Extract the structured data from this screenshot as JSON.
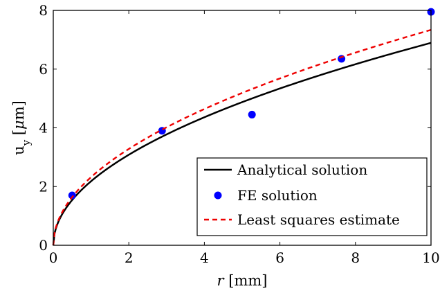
{
  "chart_data": {
    "type": "line",
    "xlabel": {
      "italic": "r",
      "rest": " [mm]"
    },
    "ylabel": {
      "main": "u",
      "sub": "y",
      "bracket_open": " [",
      "mu": "μ",
      "unit": "m]"
    },
    "xlim": [
      0,
      10
    ],
    "ylim": [
      0,
      8
    ],
    "xticks": [
      "0",
      "2",
      "4",
      "6",
      "8",
      "10"
    ],
    "yticks": [
      "0",
      "2",
      "4",
      "6",
      "8"
    ],
    "grid": false,
    "legend_position": "bottom-right",
    "series": [
      {
        "name": "Analytical solution",
        "style": "solid",
        "color": "#000000",
        "function": "sqrt",
        "coefficient": 2.18
      },
      {
        "name": "FE solution",
        "style": "markers",
        "color": "#0000ff",
        "x": [
          0.5,
          2.88,
          5.26,
          7.63,
          10.0
        ],
        "y": [
          1.7,
          3.9,
          4.45,
          6.35,
          7.95
        ]
      },
      {
        "name": "Least squares estimate",
        "style": "dashed",
        "color": "#ee0000",
        "function": "sqrt",
        "coefficient": 2.32
      }
    ]
  }
}
